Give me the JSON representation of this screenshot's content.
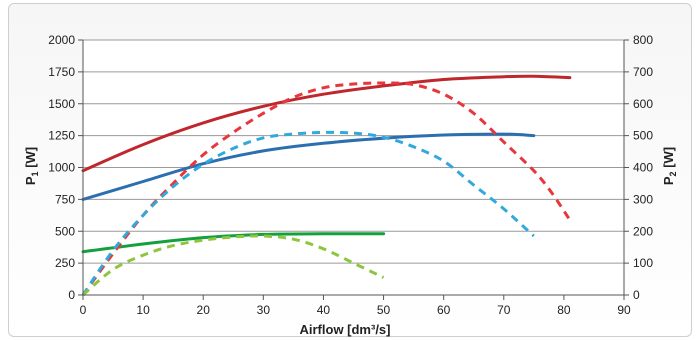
{
  "chart_data": {
    "type": "line",
    "title": "",
    "xlabel": "Airflow [dm³/s]",
    "ylabel_left": "P",
    "ylabel_left_sub": "1",
    "ylabel_left_unit": " [W]",
    "ylabel_right": "P",
    "ylabel_right_sub": "2",
    "ylabel_right_unit": " [W]",
    "xlim": [
      0,
      90
    ],
    "ylim_left": [
      0,
      2000
    ],
    "ylim_right": [
      0,
      800
    ],
    "x_ticks": [
      "0",
      "10",
      "20",
      "30",
      "40",
      "50",
      "60",
      "70",
      "80",
      "90"
    ],
    "y_left_ticks": [
      "0",
      "250",
      "500",
      "750",
      "1000",
      "1250",
      "1500",
      "1750",
      "2000"
    ],
    "y_right_ticks": [
      "0",
      "100",
      "200",
      "300",
      "400",
      "500",
      "600",
      "700",
      "800"
    ],
    "grid": true,
    "legend": "none",
    "series": [
      {
        "axis": "left",
        "color": "#c0272d",
        "style": "solid",
        "x": [
          0,
          10,
          20,
          30,
          40,
          50,
          60,
          70,
          75,
          81
        ],
        "y": [
          975,
          1180,
          1350,
          1480,
          1575,
          1640,
          1690,
          1712,
          1715,
          1705
        ]
      },
      {
        "axis": "left",
        "color": "#2c6fb0",
        "style": "solid",
        "x": [
          0,
          10,
          20,
          30,
          40,
          50,
          60,
          70,
          75
        ],
        "y": [
          750,
          890,
          1030,
          1130,
          1190,
          1230,
          1255,
          1262,
          1250
        ]
      },
      {
        "axis": "left",
        "color": "#14a03c",
        "style": "solid",
        "x": [
          0,
          10,
          20,
          30,
          40,
          50
        ],
        "y": [
          340,
          400,
          450,
          475,
          480,
          480
        ]
      },
      {
        "axis": "right",
        "color": "#e8363c",
        "style": "dashed",
        "x": [
          0,
          5,
          10,
          15,
          20,
          25,
          30,
          35,
          40,
          45,
          50,
          55,
          60,
          65,
          70,
          75,
          78,
          81
        ],
        "y": [
          0,
          130,
          250,
          350,
          440,
          510,
          570,
          620,
          650,
          662,
          665,
          660,
          630,
          570,
          480,
          390,
          320,
          235
        ]
      },
      {
        "axis": "right",
        "color": "#32a9dc",
        "style": "dashed",
        "x": [
          0,
          5,
          10,
          15,
          20,
          25,
          30,
          35,
          40,
          45,
          50,
          55,
          60,
          65,
          70,
          75
        ],
        "y": [
          0,
          140,
          250,
          340,
          410,
          460,
          493,
          505,
          510,
          508,
          495,
          465,
          420,
          345,
          270,
          185
        ]
      },
      {
        "axis": "right",
        "color": "#8cc63f",
        "style": "dashed",
        "x": [
          0,
          5,
          10,
          15,
          20,
          25,
          30,
          35,
          40,
          45,
          50
        ],
        "y": [
          0,
          80,
          125,
          155,
          172,
          182,
          185,
          175,
          145,
          100,
          55
        ]
      }
    ]
  }
}
